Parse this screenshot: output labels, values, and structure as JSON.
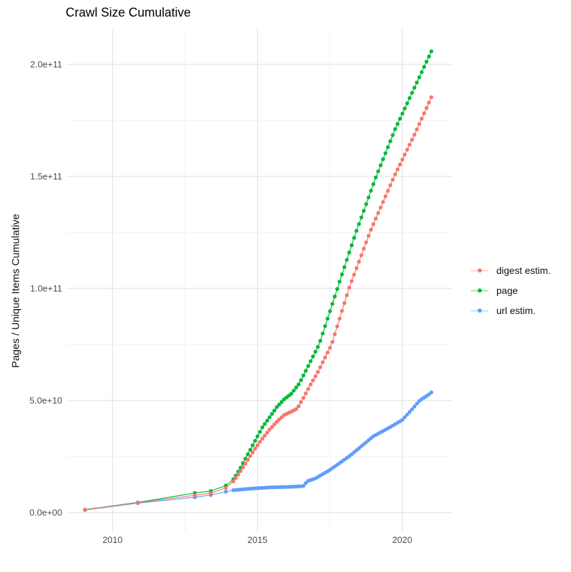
{
  "chart_data": {
    "type": "scatter-line",
    "title": "Crawl Size Cumulative",
    "ylabel": "Pages / Unique Items Cumulative",
    "xlabel": "",
    "grid": true,
    "legend_position": "right",
    "background_color": "#ffffff",
    "grid_major_color": "#e3e3e3",
    "grid_minor_color": "#f0f0f0",
    "tick_text_color": "#4d4d4d",
    "x_axis": {
      "lim": [
        2008.43,
        2021.72
      ],
      "major_ticks": [
        2010,
        2015,
        2020
      ],
      "tick_labels": [
        "2010",
        "2015",
        "2020"
      ],
      "minor_ticks": [
        2012.5,
        2017.5
      ]
    },
    "y_axis": {
      "note": "values in units of 1e9 items",
      "lim_e9": [
        -8.33,
        215.74
      ],
      "major_ticks_e9": [
        0,
        50,
        100,
        150,
        200
      ],
      "tick_labels": [
        "0.0e+00",
        "5.0e+10",
        "1.0e+11",
        "1.5e+11",
        "2.0e+11"
      ],
      "minor_ticks_e9": [
        25,
        75,
        125,
        175
      ]
    },
    "marker_x": {
      "sparse": [
        2009.05,
        2010.87,
        2012.84,
        2013.39,
        2013.91
      ],
      "dense_start": 2014.17,
      "dense_step_years": 0.083333,
      "dense_count": 83
    },
    "series": [
      {
        "name": "digest estim.",
        "color": "#F8766D",
        "z": 3,
        "knots_e9": [
          [
            2009.05,
            1.2
          ],
          [
            2010.87,
            4.4
          ],
          [
            2012.84,
            7.7
          ],
          [
            2013.39,
            8.6
          ],
          [
            2013.91,
            11
          ],
          [
            2014.18,
            14
          ],
          [
            2014.42,
            18.5
          ],
          [
            2014.92,
            28.5
          ],
          [
            2015.17,
            33
          ],
          [
            2015.42,
            37
          ],
          [
            2015.67,
            40.5
          ],
          [
            2015.92,
            43.5
          ],
          [
            2016.17,
            45
          ],
          [
            2016.38,
            46.5
          ],
          [
            2016.58,
            51
          ],
          [
            2016.83,
            57
          ],
          [
            2017.08,
            62.5
          ],
          [
            2017.56,
            75
          ],
          [
            2018.16,
            100
          ],
          [
            2018.88,
            125
          ],
          [
            2019.72,
            150
          ],
          [
            2020.4,
            168
          ],
          [
            2021.01,
            185.5
          ]
        ]
      },
      {
        "name": "page",
        "color": "#00BA38",
        "z": 2,
        "knots_e9": [
          [
            2009.05,
            1.3
          ],
          [
            2010.87,
            4.5
          ],
          [
            2012.84,
            8.7
          ],
          [
            2013.39,
            9.6
          ],
          [
            2013.91,
            12
          ],
          [
            2014.18,
            15
          ],
          [
            2014.42,
            20
          ],
          [
            2014.92,
            32
          ],
          [
            2015.17,
            38
          ],
          [
            2015.42,
            42.5
          ],
          [
            2015.67,
            47
          ],
          [
            2015.92,
            50.5
          ],
          [
            2016.17,
            53
          ],
          [
            2016.44,
            57.5
          ],
          [
            2016.68,
            63.5
          ],
          [
            2017.13,
            75
          ],
          [
            2017.76,
            100
          ],
          [
            2018.4,
            125
          ],
          [
            2019.1,
            150
          ],
          [
            2019.75,
            171
          ],
          [
            2020.4,
            189
          ],
          [
            2021.01,
            206
          ]
        ]
      },
      {
        "name": "url estim.",
        "color": "#619CFF",
        "z": 1,
        "knots_e9": [
          [
            2009.05,
            1.1
          ],
          [
            2010.87,
            4.2
          ],
          [
            2012.84,
            6.8
          ],
          [
            2013.39,
            7.8
          ],
          [
            2013.91,
            9.3
          ],
          [
            2014.18,
            10
          ],
          [
            2014.92,
            10.8
          ],
          [
            2015.42,
            11.2
          ],
          [
            2016.17,
            11.5
          ],
          [
            2016.58,
            11.8
          ],
          [
            2016.73,
            14
          ],
          [
            2017.0,
            15.2
          ],
          [
            2017.5,
            19
          ],
          [
            2018.16,
            25
          ],
          [
            2019.0,
            34
          ],
          [
            2019.5,
            37.5
          ],
          [
            2020.0,
            41.3
          ],
          [
            2020.3,
            45.5
          ],
          [
            2020.6,
            50
          ],
          [
            2020.9,
            52.5
          ],
          [
            2021.01,
            53.7
          ]
        ]
      }
    ]
  }
}
